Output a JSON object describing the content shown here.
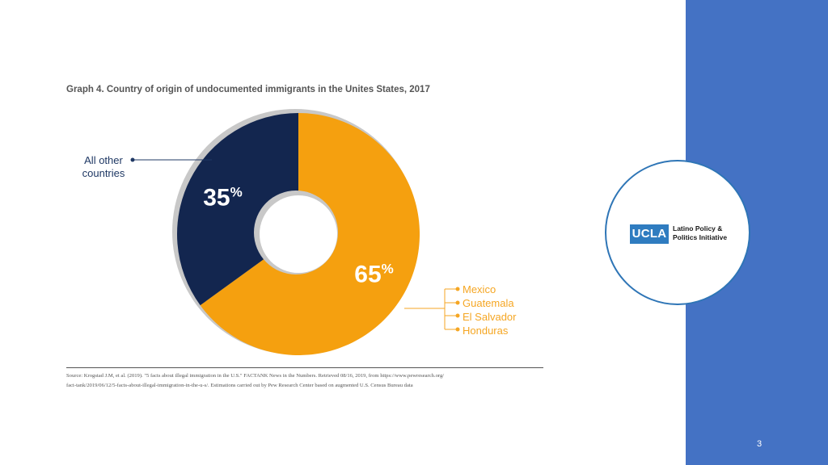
{
  "slide": {
    "page_number": "3",
    "logo": {
      "ucla": "UCLA",
      "line1": "Latino Policy &",
      "line2": "Politics Initiative"
    },
    "source": {
      "line1": "Source: Krogstad J.M, et al. (2019). \"5 facts about illegal immigration in the U.S.\" FACTANK News in the Numbers. Retrieved 08/16, 2019, from https://www.pewresearch.org/",
      "line2": "fact-tank/2019/06/12/5-facts-about-illegal-immigration-in-the-u-s/. Estimations carried out by Pew Research Center based on augmented U.S. Census Bureau data"
    }
  },
  "chart_data": {
    "type": "pie",
    "title": "Graph 4. Country of origin of undocumented immigrants in the Unites States, 2017",
    "slices": [
      {
        "label_lines": [
          "Mexico",
          "Guatemala",
          "El Salvador",
          "Honduras"
        ],
        "value": 65,
        "value_label": "65%",
        "color": "#f5a00f"
      },
      {
        "label_lines": [
          "All other",
          "countries"
        ],
        "value": 35,
        "value_label": "35%",
        "color": "#13264f"
      }
    ]
  }
}
